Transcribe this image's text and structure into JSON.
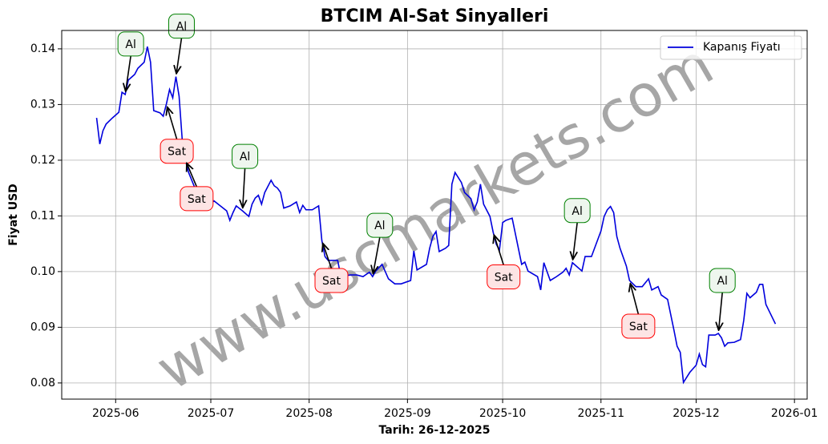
{
  "chart_data": {
    "type": "line",
    "title": "BTCIM Al-Sat Sinyalleri",
    "xlabel": "Tarih: 26-12-2025",
    "ylabel": "Fiyat USD",
    "watermark": "www.uscmarkets.com",
    "legend": "upper right",
    "grid": true,
    "xlim": [
      "2025-05-15",
      "2026-01-05"
    ],
    "ylim": [
      0.0771,
      0.1433
    ],
    "xticks": [
      {
        "value": "2025-06-01",
        "label": "2025-06"
      },
      {
        "value": "2025-07-01",
        "label": "2025-07"
      },
      {
        "value": "2025-08-01",
        "label": "2025-08"
      },
      {
        "value": "2025-09-01",
        "label": "2025-09"
      },
      {
        "value": "2025-10-01",
        "label": "2025-10"
      },
      {
        "value": "2025-11-01",
        "label": "2025-11"
      },
      {
        "value": "2025-12-01",
        "label": "2025-12"
      },
      {
        "value": "2026-01-01",
        "label": "2026-01"
      }
    ],
    "yticks": [
      0.08,
      0.09,
      {
        "value": 0.1,
        "label": "0.10"
      },
      0.11,
      0.12,
      0.13,
      0.14
    ],
    "series": [
      {
        "name": "Kapanış Fiyatı",
        "color": "#0000dd",
        "x": [
          "2025-05-26",
          "2025-05-27",
          "2025-05-28",
          "2025-05-29",
          "2025-05-31",
          "2025-06-02",
          "2025-06-03",
          "2025-06-04",
          "2025-06-05",
          "2025-06-07",
          "2025-06-08",
          "2025-06-10",
          "2025-06-11",
          "2025-06-12",
          "2025-06-13",
          "2025-06-15",
          "2025-06-16",
          "2025-06-17",
          "2025-06-18",
          "2025-06-19",
          "2025-06-20",
          "2025-06-21",
          "2025-06-22",
          "2025-06-23",
          "2025-06-24",
          "2025-06-26",
          "2025-06-28",
          "2025-06-29",
          "2025-07-01",
          "2025-07-02",
          "2025-07-04",
          "2025-07-06",
          "2025-07-07",
          "2025-07-08",
          "2025-07-09",
          "2025-07-11",
          "2025-07-13",
          "2025-07-14",
          "2025-07-15",
          "2025-07-16",
          "2025-07-17",
          "2025-07-18",
          "2025-07-20",
          "2025-07-21",
          "2025-07-22",
          "2025-07-23",
          "2025-07-24",
          "2025-07-26",
          "2025-07-28",
          "2025-07-29",
          "2025-07-30",
          "2025-07-31",
          "2025-08-02",
          "2025-08-04",
          "2025-08-05",
          "2025-08-06",
          "2025-08-07",
          "2025-08-10",
          "2025-08-11",
          "2025-08-14",
          "2025-08-16",
          "2025-08-18",
          "2025-08-20",
          "2025-08-21",
          "2025-08-22",
          "2025-08-24",
          "2025-08-26",
          "2025-08-28",
          "2025-08-30",
          "2025-09-02",
          "2025-09-03",
          "2025-09-04",
          "2025-09-07",
          "2025-09-08",
          "2025-09-09",
          "2025-09-10",
          "2025-09-11",
          "2025-09-13",
          "2025-09-14",
          "2025-09-15",
          "2025-09-16",
          "2025-09-18",
          "2025-09-19",
          "2025-09-21",
          "2025-09-22",
          "2025-09-23",
          "2025-09-24",
          "2025-09-25",
          "2025-09-27",
          "2025-09-28",
          "2025-09-29",
          "2025-09-30",
          "2025-10-01",
          "2025-10-02",
          "2025-10-04",
          "2025-10-07",
          "2025-10-08",
          "2025-10-09",
          "2025-10-12",
          "2025-10-13",
          "2025-10-14",
          "2025-10-16",
          "2025-10-18",
          "2025-10-20",
          "2025-10-21",
          "2025-10-22",
          "2025-10-23",
          "2025-10-26",
          "2025-10-27",
          "2025-10-29",
          "2025-11-01",
          "2025-11-02",
          "2025-11-03",
          "2025-11-04",
          "2025-11-05",
          "2025-11-06",
          "2025-11-07",
          "2025-11-09",
          "2025-11-10",
          "2025-11-12",
          "2025-11-14",
          "2025-11-16",
          "2025-11-17",
          "2025-11-19",
          "2025-11-20",
          "2025-11-22",
          "2025-11-24",
          "2025-11-25",
          "2025-11-26",
          "2025-11-27",
          "2025-11-29",
          "2025-12-01",
          "2025-12-02",
          "2025-12-03",
          "2025-12-04",
          "2025-12-05",
          "2025-12-07",
          "2025-12-08",
          "2025-12-09",
          "2025-12-10",
          "2025-12-11",
          "2025-12-13",
          "2025-12-15",
          "2025-12-16",
          "2025-12-17",
          "2025-12-18",
          "2025-12-20",
          "2025-12-21",
          "2025-12-22",
          "2025-12-23",
          "2025-12-26"
        ],
        "values": [
          0.1276,
          0.1229,
          0.1253,
          0.1265,
          0.1276,
          0.1286,
          0.1322,
          0.1318,
          0.1344,
          0.1354,
          0.1365,
          0.1376,
          0.1404,
          0.1376,
          0.1289,
          0.1285,
          0.1279,
          0.1301,
          0.1327,
          0.1312,
          0.135,
          0.1315,
          0.1236,
          0.12,
          0.1178,
          0.115,
          0.1128,
          0.1118,
          0.1121,
          0.1127,
          0.1118,
          0.1109,
          0.1092,
          0.1106,
          0.1118,
          0.1109,
          0.1099,
          0.1121,
          0.1132,
          0.1137,
          0.1121,
          0.1142,
          0.1164,
          0.1154,
          0.115,
          0.1142,
          0.1114,
          0.1118,
          0.1125,
          0.1106,
          0.1119,
          0.1111,
          0.1111,
          0.1118,
          0.1056,
          0.1027,
          0.102,
          0.102,
          0.0991,
          0.0994,
          0.0994,
          0.0991,
          0.0999,
          0.0991,
          0.1001,
          0.1013,
          0.0987,
          0.0978,
          0.0978,
          0.0984,
          0.1037,
          0.1003,
          0.1013,
          0.1042,
          0.1063,
          0.1072,
          0.1036,
          0.1042,
          0.1047,
          0.1157,
          0.1178,
          0.116,
          0.1142,
          0.1131,
          0.1111,
          0.1125,
          0.1157,
          0.1121,
          0.1099,
          0.1071,
          0.1049,
          0.1039,
          0.1088,
          0.1092,
          0.1096,
          0.1013,
          0.1017,
          0.1001,
          0.0991,
          0.0967,
          0.1016,
          0.0984,
          0.0991,
          0.0999,
          0.1006,
          0.0994,
          0.1016,
          0.1001,
          0.1027,
          0.1027,
          0.1073,
          0.1099,
          0.1111,
          0.1117,
          0.1106,
          0.1063,
          0.1042,
          0.101,
          0.0984,
          0.0973,
          0.0973,
          0.0987,
          0.0967,
          0.0973,
          0.0958,
          0.095,
          0.0895,
          0.0866,
          0.0855,
          0.0801,
          0.0819,
          0.0832,
          0.0852,
          0.0833,
          0.0829,
          0.0886,
          0.0886,
          0.0889,
          0.0881,
          0.0866,
          0.0872,
          0.0873,
          0.0878,
          0.0912,
          0.0961,
          0.0953,
          0.0963,
          0.0977,
          0.0977,
          0.0941,
          0.0906
        ]
      }
    ],
    "annotations": [
      {
        "text": "Al",
        "x": "2025-06-04",
        "y": 0.1318,
        "color": "green"
      },
      {
        "text": "Al",
        "x": "2025-06-20",
        "y": 0.135,
        "color": "green"
      },
      {
        "text": "Sat",
        "x": "2025-06-17",
        "y": 0.1301,
        "color": "red"
      },
      {
        "text": "Sat",
        "x": "2025-06-23",
        "y": 0.12,
        "color": "red"
      },
      {
        "text": "Al",
        "x": "2025-07-11",
        "y": 0.1109,
        "color": "green"
      },
      {
        "text": "Sat",
        "x": "2025-08-05",
        "y": 0.1056,
        "color": "red"
      },
      {
        "text": "Al",
        "x": "2025-08-21",
        "y": 0.0991,
        "color": "green"
      },
      {
        "text": "Sat",
        "x": "2025-09-28",
        "y": 0.1071,
        "color": "red"
      },
      {
        "text": "Al",
        "x": "2025-10-23",
        "y": 0.1016,
        "color": "green"
      },
      {
        "text": "Sat",
        "x": "2025-11-10",
        "y": 0.0984,
        "color": "red"
      },
      {
        "text": "Al",
        "x": "2025-12-08",
        "y": 0.0889,
        "color": "green"
      }
    ]
  }
}
